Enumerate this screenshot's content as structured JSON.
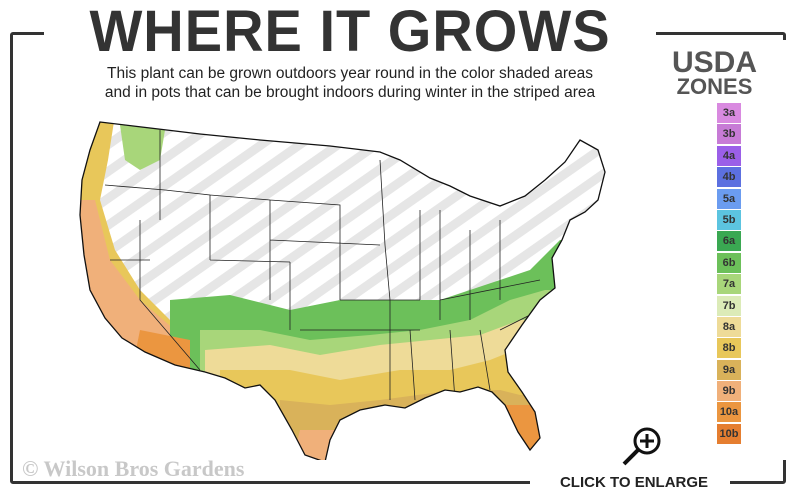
{
  "title": "WHERE IT GROWS",
  "subtitle_line1": "This plant can be grown outdoors year round in the color shaded areas",
  "subtitle_line2": "and in pots that can be brought indoors during winter in the striped area",
  "legend": {
    "title_line1": "USDA",
    "title_line2": "ZONES",
    "zones": [
      {
        "label": "3a",
        "color": "#d98ae0"
      },
      {
        "label": "3b",
        "color": "#c77bd6"
      },
      {
        "label": "4a",
        "color": "#9b5fe8"
      },
      {
        "label": "4b",
        "color": "#5c70e0"
      },
      {
        "label": "5a",
        "color": "#6b9cf0"
      },
      {
        "label": "5b",
        "color": "#5cc4e0"
      },
      {
        "label": "6a",
        "color": "#3aa852"
      },
      {
        "label": "6b",
        "color": "#6cc05a"
      },
      {
        "label": "7a",
        "color": "#a8d67a"
      },
      {
        "label": "7b",
        "color": "#dcebb8"
      },
      {
        "label": "8a",
        "color": "#eedb98"
      },
      {
        "label": "8b",
        "color": "#e8c75a"
      },
      {
        "label": "9a",
        "color": "#d9b25a"
      },
      {
        "label": "9b",
        "color": "#f0b07a"
      },
      {
        "label": "10a",
        "color": "#eb9640"
      },
      {
        "label": "10b",
        "color": "#e57e30"
      }
    ]
  },
  "copyright": "© Wilson Bros Gardens",
  "enlarge_label": "CLICK TO ENLARGE",
  "icons": {
    "enlarge": "magnifier-plus-icon"
  }
}
